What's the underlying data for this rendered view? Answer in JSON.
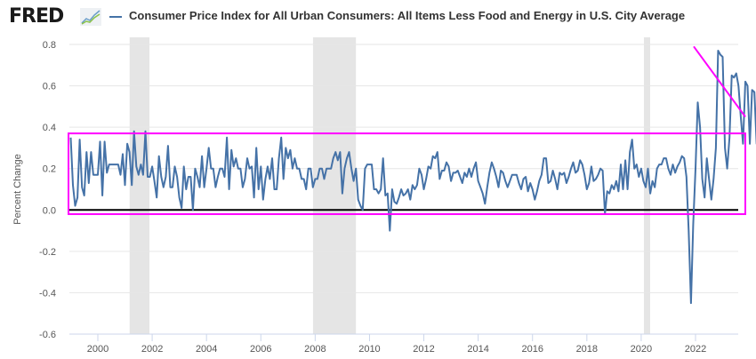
{
  "header": {
    "logo_text": "FRED",
    "logo_icon": "line-chart-icon",
    "title": "Consumer Price Index for All Urban Consumers: All Items Less Food and Energy in U.S. City Average"
  },
  "colors": {
    "series": "#4572a7",
    "recession": "#e5e5e5",
    "annotation": "#ff00ff",
    "zero_line": "#000000",
    "grid": "#e6e6e6"
  },
  "chart_data": {
    "type": "line",
    "title": "Consumer Price Index for All Urban Consumers: All Items Less Food and Energy in U.S. City Average",
    "xlabel": "",
    "ylabel": "Percent Change",
    "xlim": [
      1998.95,
      2023.6
    ],
    "ylim": [
      -0.6,
      0.8
    ],
    "yticks": [
      "0.8",
      "0.6",
      "0.4",
      "0.2",
      "0.0",
      "-0.2",
      "-0.4",
      "-0.6"
    ],
    "ytick_values": [
      0.8,
      0.6,
      0.4,
      0.2,
      0.0,
      -0.2,
      -0.4,
      -0.6
    ],
    "xticks": [
      "2000",
      "2002",
      "2004",
      "2006",
      "2008",
      "2010",
      "2012",
      "2014",
      "2016",
      "2018",
      "2020",
      "2022"
    ],
    "xtick_values": [
      2000,
      2002,
      2004,
      2006,
      2008,
      2010,
      2012,
      2014,
      2016,
      2018,
      2020,
      2022
    ],
    "grid": true,
    "legend": "top-left",
    "recessions": [
      [
        2001.17,
        2001.9
      ],
      [
        2007.92,
        2009.5
      ],
      [
        2020.1,
        2020.33
      ]
    ],
    "annotations": {
      "box": {
        "x": [
          1998.95,
          2023.7
        ],
        "y": [
          -0.02,
          0.37
        ]
      },
      "trend_line": {
        "x": [
          2022.0,
          2023.7
        ],
        "y": [
          0.79,
          0.45
        ]
      }
    },
    "series": [
      {
        "name": "Consumer Price Index for All Urban Consumers: All Items Less Food and Energy in U.S. City Average",
        "start": 1999.0,
        "step": 0.08333,
        "values": [
          0.35,
          0.12,
          0.02,
          0.06,
          0.34,
          0.11,
          0.07,
          0.28,
          0.13,
          0.28,
          0.17,
          0.17,
          0.17,
          0.33,
          0.07,
          0.33,
          0.18,
          0.22,
          0.22,
          0.22,
          0.22,
          0.22,
          0.17,
          0.27,
          0.12,
          0.32,
          0.28,
          0.12,
          0.38,
          0.21,
          0.17,
          0.22,
          0.17,
          0.38,
          0.16,
          0.16,
          0.21,
          0.14,
          0.06,
          0.26,
          0.16,
          0.11,
          0.16,
          0.31,
          0.11,
          0.11,
          0.21,
          0.16,
          0.06,
          0.01,
          0.21,
          0.1,
          0.16,
          0.16,
          0.0,
          0.2,
          0.16,
          0.11,
          0.26,
          0.11,
          0.2,
          0.3,
          0.2,
          0.2,
          0.11,
          0.16,
          0.2,
          0.2,
          0.16,
          0.35,
          0.1,
          0.29,
          0.21,
          0.25,
          0.2,
          0.2,
          0.11,
          0.15,
          0.25,
          0.2,
          0.21,
          0.06,
          0.3,
          0.1,
          0.21,
          0.05,
          0.15,
          0.21,
          0.15,
          0.25,
          0.1,
          0.1,
          0.25,
          0.35,
          0.15,
          0.3,
          0.25,
          0.29,
          0.2,
          0.25,
          0.2,
          0.2,
          0.15,
          0.15,
          0.1,
          0.2,
          0.2,
          0.11,
          0.15,
          0.15,
          0.2,
          0.2,
          0.15,
          0.2,
          0.2,
          0.2,
          0.25,
          0.28,
          0.24,
          0.28,
          0.08,
          0.2,
          0.25,
          0.28,
          0.2,
          0.14,
          0.2,
          0.05,
          0.02,
          0.0,
          0.2,
          0.22,
          0.22,
          0.22,
          0.1,
          0.1,
          0.08,
          0.1,
          0.25,
          0.07,
          0.08,
          -0.1,
          0.1,
          0.04,
          0.03,
          0.06,
          0.1,
          0.07,
          0.08,
          0.1,
          0.05,
          0.12,
          0.1,
          0.12,
          0.2,
          0.17,
          0.1,
          0.15,
          0.21,
          0.2,
          0.26,
          0.25,
          0.28,
          0.15,
          0.19,
          0.19,
          0.23,
          0.21,
          0.14,
          0.18,
          0.18,
          0.19,
          0.16,
          0.13,
          0.18,
          0.16,
          0.2,
          0.16,
          0.2,
          0.23,
          0.14,
          0.11,
          0.08,
          0.03,
          0.11,
          0.18,
          0.23,
          0.2,
          0.16,
          0.11,
          0.19,
          0.18,
          0.14,
          0.11,
          0.14,
          0.17,
          0.17,
          0.17,
          0.13,
          0.1,
          0.15,
          0.16,
          0.09,
          0.13,
          0.1,
          0.05,
          0.09,
          0.14,
          0.17,
          0.25,
          0.25,
          0.13,
          0.14,
          0.19,
          0.15,
          0.1,
          0.18,
          0.17,
          0.18,
          0.13,
          0.16,
          0.2,
          0.23,
          0.18,
          0.19,
          0.24,
          0.22,
          0.17,
          0.1,
          0.13,
          0.21,
          0.14,
          0.15,
          0.17,
          0.2,
          0.19,
          -0.02,
          0.09,
          0.08,
          0.12,
          0.1,
          0.14,
          0.09,
          0.22,
          0.1,
          0.24,
          0.1,
          0.28,
          0.34,
          0.2,
          0.22,
          0.16,
          0.2,
          0.14,
          0.11,
          0.2,
          0.08,
          0.14,
          0.11,
          0.2,
          0.22,
          0.22,
          0.25,
          0.25,
          0.2,
          0.17,
          0.22,
          0.18,
          0.21,
          0.23,
          0.26,
          0.25,
          0.16,
          -0.1,
          -0.45,
          -0.07,
          0.2,
          0.52,
          0.4,
          0.15,
          0.06,
          0.25,
          0.15,
          0.05,
          0.15,
          0.3,
          0.77,
          0.75,
          0.74,
          0.3,
          0.2,
          0.35,
          0.65,
          0.64,
          0.66,
          0.6,
          0.45,
          0.32,
          0.62,
          0.6,
          0.32,
          0.58,
          0.57,
          0.32,
          0.3,
          0.41,
          0.42,
          0.45,
          0.38,
          0.43,
          0.16,
          0.16,
          0.28,
          0.33
        ]
      }
    ]
  }
}
